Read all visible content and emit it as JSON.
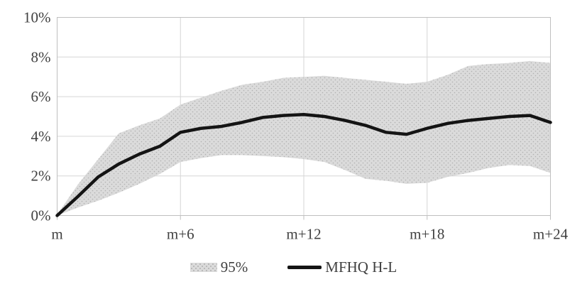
{
  "chart_data": {
    "type": "line",
    "title": "",
    "categories": [
      "m",
      "m+1",
      "m+2",
      "m+3",
      "m+4",
      "m+5",
      "m+6",
      "m+7",
      "m+8",
      "m+9",
      "m+10",
      "m+11",
      "m+12",
      "m+13",
      "m+14",
      "m+15",
      "m+16",
      "m+17",
      "m+18",
      "m+19",
      "m+20",
      "m+21",
      "m+22",
      "m+23",
      "m+24"
    ],
    "x_axis": {
      "tick_labels": [
        "m",
        "m+6",
        "m+12",
        "m+18",
        "m+24"
      ],
      "tick_positions": [
        0,
        6,
        12,
        18,
        24
      ],
      "gridline_positions": [
        6,
        12,
        18
      ]
    },
    "y_axis": {
      "tick_labels": [
        "0%",
        "2%",
        "4%",
        "6%",
        "8%",
        "10%"
      ],
      "tick_values": [
        0,
        2,
        4,
        6,
        8,
        10
      ],
      "gridline_values": [
        2,
        4,
        6,
        8
      ],
      "ylim": [
        0,
        10
      ],
      "unit": "percent"
    },
    "series": [
      {
        "name": "95%",
        "type": "band",
        "fill": "#dbdbdb",
        "dot_color": "#b0b0b0",
        "upper": [
          0.05,
          1.55,
          2.85,
          4.15,
          4.55,
          4.9,
          5.6,
          5.95,
          6.3,
          6.6,
          6.75,
          6.95,
          7.0,
          7.05,
          6.95,
          6.85,
          6.75,
          6.65,
          6.75,
          7.1,
          7.55,
          7.65,
          7.7,
          7.8,
          7.7
        ],
        "lower": [
          0.0,
          0.4,
          0.75,
          1.15,
          1.6,
          2.1,
          2.7,
          2.9,
          3.05,
          3.05,
          3.0,
          2.95,
          2.85,
          2.7,
          2.3,
          1.85,
          1.75,
          1.6,
          1.65,
          1.95,
          2.15,
          2.4,
          2.55,
          2.5,
          2.15
        ]
      },
      {
        "name": "MFHQ H-L",
        "type": "line",
        "color": "#141414",
        "values": [
          0.0,
          0.95,
          1.95,
          2.6,
          3.1,
          3.5,
          4.2,
          4.4,
          4.5,
          4.7,
          4.95,
          5.05,
          5.1,
          5.0,
          4.8,
          4.55,
          4.2,
          4.1,
          4.4,
          4.65,
          4.8,
          4.9,
          5.0,
          5.05,
          4.7
        ]
      }
    ],
    "legend": {
      "position": "bottom"
    },
    "grid": true,
    "colors": {
      "gridline": "#d6d6d6",
      "plot_border": "#bfbfbf",
      "tick": "#bfbfbf",
      "text": "#404040",
      "background": "#ffffff"
    }
  }
}
